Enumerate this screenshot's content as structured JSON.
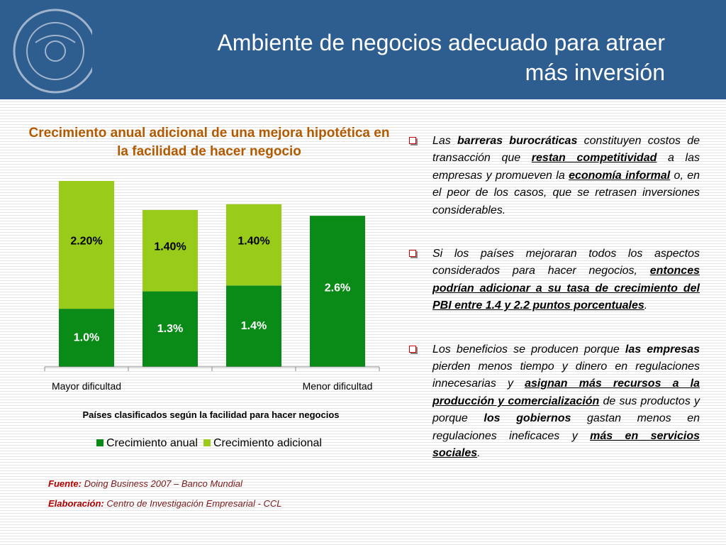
{
  "header": {
    "title_line1": "Ambiente de negocios adecuado para atraer",
    "title_line2": "más inversión"
  },
  "chart_data": {
    "type": "stacked-bar",
    "title": "Crecimiento anual adicional de una mejora hipotética en la facilidad de hacer negocio",
    "x_label": "Países clasificados según la facilidad para hacer negocios",
    "categories": [
      "Mayor dificultad",
      null,
      null,
      "Menor dificultad"
    ],
    "series": [
      {
        "name": "Crecimiento anual",
        "color": "#0a8a16",
        "values": [
          1.0,
          1.3,
          1.4,
          2.6
        ],
        "value_labels": [
          "1.0%",
          "1.3%",
          "1.4%",
          "2.6%"
        ]
      },
      {
        "name": "Crecimiento adicional",
        "color": "#99cc1a",
        "values": [
          2.2,
          1.4,
          1.4,
          null
        ],
        "value_labels": [
          "2.20%",
          "1.40%",
          "1.40%",
          null
        ]
      }
    ],
    "legend": "bottom"
  },
  "sources": [
    {
      "label": "Fuente:",
      "text": "Doing Business 2007 – Banco Mundial"
    },
    {
      "label": "Elaboración:",
      "text": "Centro de Investigación Empresarial - CCL"
    }
  ],
  "bullets": [
    [
      {
        "text": "Las "
      },
      {
        "text": "barreras burocráticas",
        "style": "bold"
      },
      {
        "text": " constituyen costos de transacción que "
      },
      {
        "text": "restan competitividad",
        "style": "bold-underline"
      },
      {
        "text": " a las empresas y promueven la "
      },
      {
        "text": "economía informal",
        "style": "bold-underline"
      },
      {
        "text": " o, en el peor de los casos, que se retrasen inversiones considerables."
      }
    ],
    [
      {
        "text": "Si los países mejoraran todos los aspectos considerados para hacer negocios, "
      },
      {
        "text": "entonces podrían adicionar a su tasa de crecimiento del PBI entre 1.4 y 2.2 puntos porcentuales",
        "style": "bold-underline"
      },
      {
        "text": "."
      }
    ],
    [
      {
        "text": "Los beneficios se producen porque "
      },
      {
        "text": "las empresas",
        "style": "bold"
      },
      {
        "text": " pierden menos tiempo y dinero en regulaciones innecesarias y "
      },
      {
        "text": "asignan más recursos a la producción y comercialización",
        "style": "bold-underline"
      },
      {
        "text": " de sus productos y porque "
      },
      {
        "text": "los gobiernos",
        "style": "bold"
      },
      {
        "text": " gastan menos en regulaciones ineficaces y "
      },
      {
        "text": "más en servicios sociales",
        "style": "bold-underline"
      },
      {
        "text": "."
      }
    ]
  ]
}
